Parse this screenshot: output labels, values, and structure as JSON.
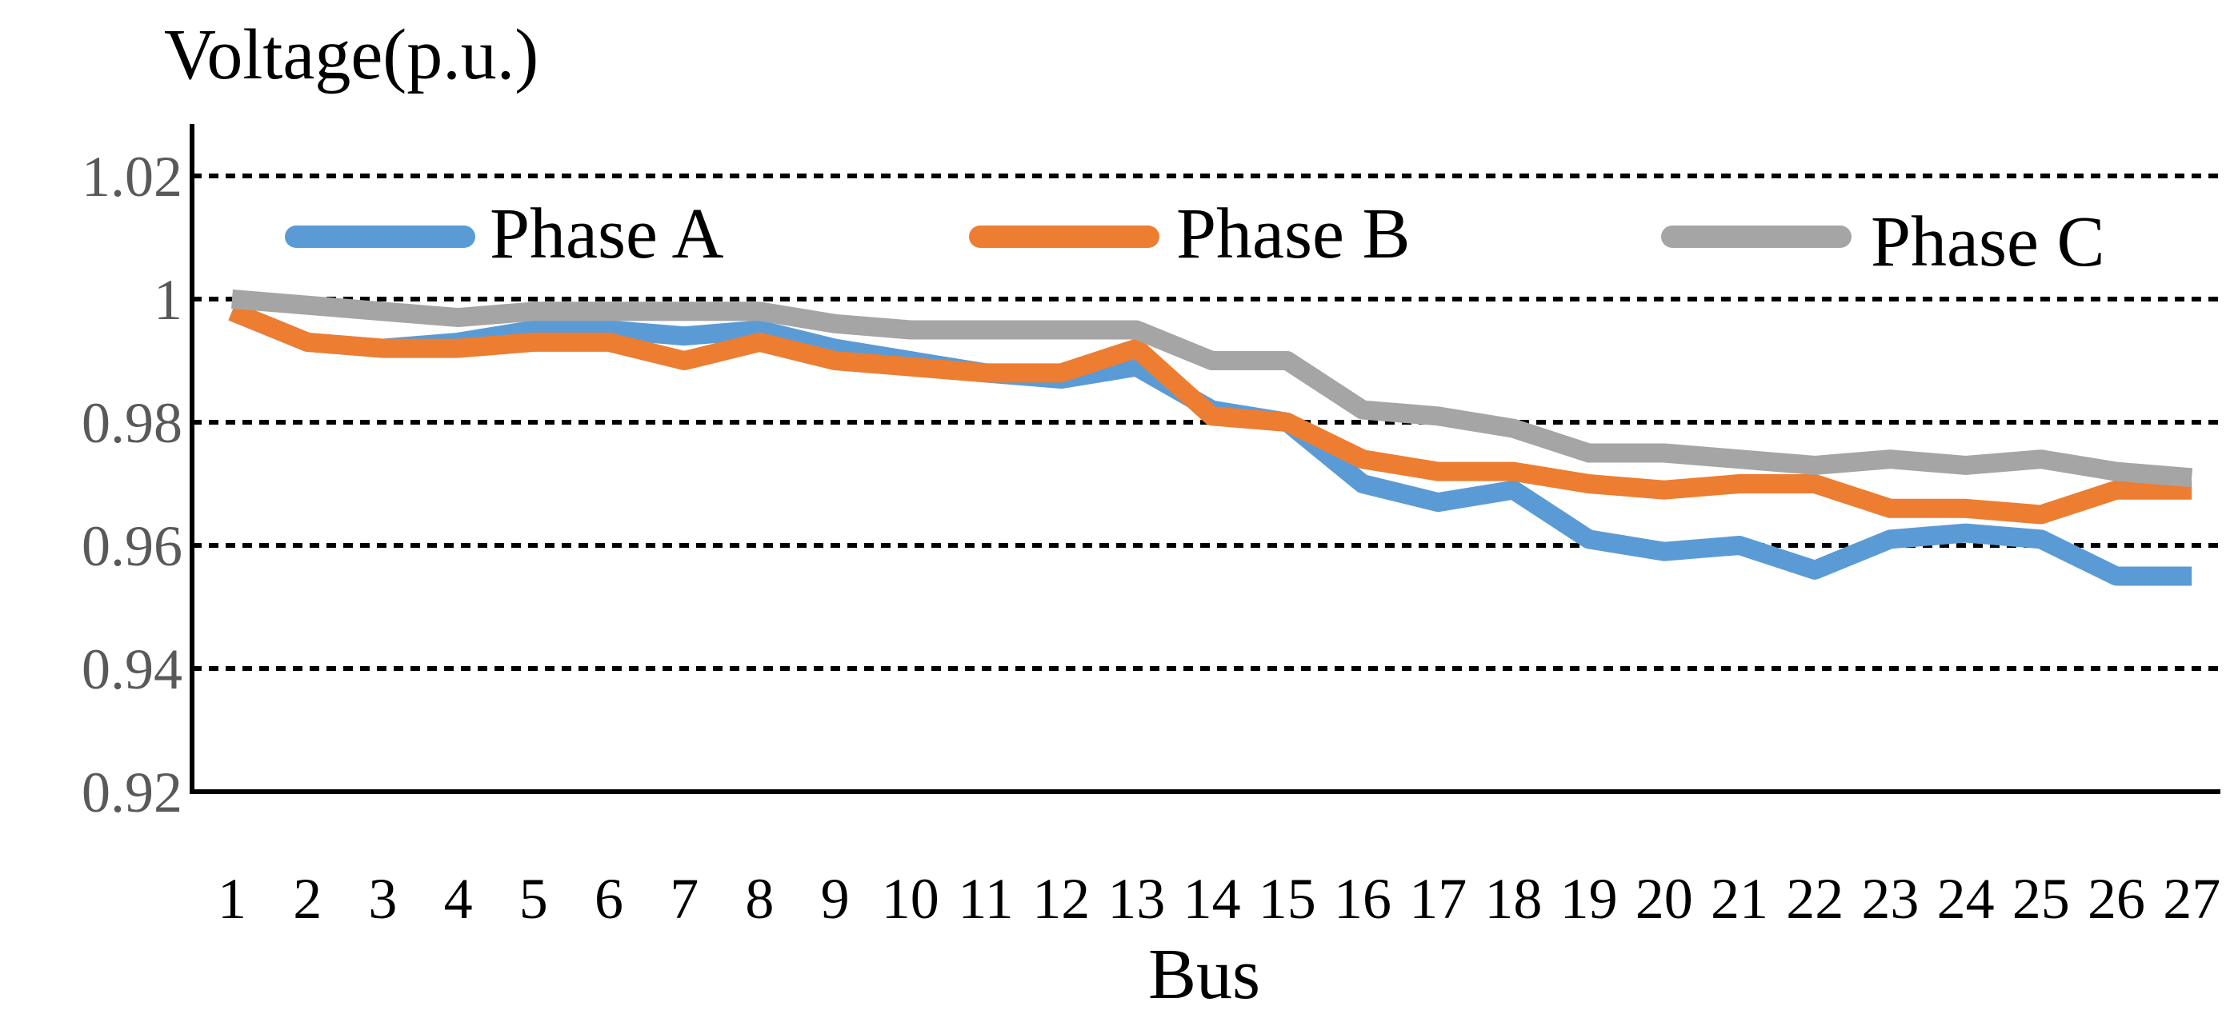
{
  "chart_data": {
    "type": "line",
    "title": "",
    "ylabel": "Voltage(p.u.)",
    "xlabel": "Bus",
    "ylim": [
      0.92,
      1.02
    ],
    "yticks": [
      "0.92",
      "0.94",
      "0.96",
      "0.98",
      "1",
      "1.02"
    ],
    "ytick_values": [
      0.92,
      0.94,
      0.96,
      0.98,
      1.0,
      1.02
    ],
    "grid": true,
    "legend_position": "top",
    "categories": [
      "1",
      "2",
      "3",
      "4",
      "5",
      "6",
      "7",
      "8",
      "9",
      "10",
      "11",
      "12",
      "13",
      "14",
      "15",
      "16",
      "17",
      "18",
      "19",
      "20",
      "21",
      "22",
      "23",
      "24",
      "25",
      "26",
      "27"
    ],
    "series": [
      {
        "name": "Phase A",
        "color": "#5B9BD5",
        "values": [
          0.998,
          0.993,
          0.992,
          0.993,
          0.995,
          0.995,
          0.994,
          0.995,
          0.992,
          0.99,
          0.988,
          0.987,
          0.989,
          0.982,
          0.98,
          0.97,
          0.967,
          0.969,
          0.961,
          0.959,
          0.96,
          0.956,
          0.961,
          0.962,
          0.961,
          0.955,
          0.955
        ]
      },
      {
        "name": "Phase B",
        "color": "#ED7D31",
        "values": [
          0.998,
          0.993,
          0.992,
          0.992,
          0.993,
          0.993,
          0.99,
          0.993,
          0.99,
          0.989,
          0.988,
          0.988,
          0.992,
          0.981,
          0.98,
          0.974,
          0.972,
          0.972,
          0.97,
          0.969,
          0.97,
          0.97,
          0.966,
          0.966,
          0.965,
          0.969,
          0.969
        ]
      },
      {
        "name": "Phase C",
        "color": "#A5A5A5",
        "values": [
          1.0,
          0.999,
          0.998,
          0.997,
          0.998,
          0.998,
          0.998,
          0.998,
          0.996,
          0.995,
          0.995,
          0.995,
          0.995,
          0.99,
          0.99,
          0.982,
          0.981,
          0.979,
          0.975,
          0.975,
          0.974,
          0.973,
          0.974,
          0.973,
          0.974,
          0.972,
          0.971
        ]
      }
    ]
  }
}
